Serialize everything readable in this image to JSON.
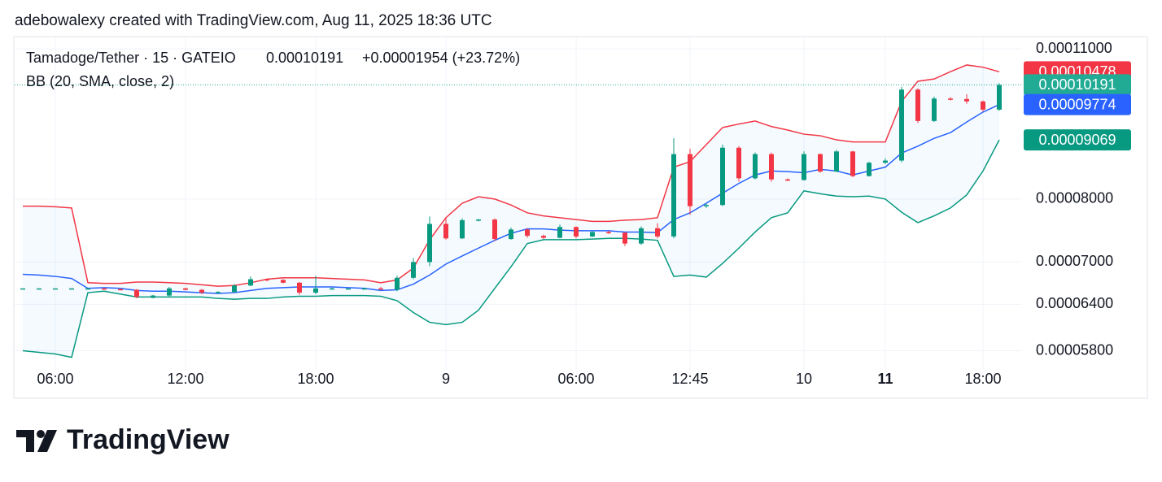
{
  "header": {
    "attribution": "adebowalexy created with TradingView.com, Aug 11, 2025 18:36 UTC"
  },
  "chart_data": {
    "type": "candlestick",
    "symbol": "Tamadoge/Tether · 15 · GATEIO",
    "price": "0.00010191",
    "change": "+0.00001954 (+23.72%)",
    "indicator": "BB (20, SMA, close, 2)",
    "categories": [
      null,
      null,
      "06:00",
      null,
      null,
      null,
      null,
      null,
      null,
      null,
      "12:00",
      null,
      null,
      null,
      null,
      null,
      null,
      null,
      "18:00",
      null,
      null,
      null,
      null,
      null,
      null,
      null,
      "9",
      null,
      null,
      null,
      null,
      null,
      null,
      null,
      "06:00",
      null,
      null,
      null,
      null,
      null,
      null,
      "12:45",
      null,
      null,
      null,
      null,
      null,
      null,
      "10",
      null,
      null,
      null,
      null,
      "11",
      null,
      null,
      null,
      null,
      null,
      "18:00",
      null
    ],
    "bold_categories": [
      53
    ],
    "open": [
      6.62e-05,
      6.62e-05,
      6.62e-05,
      6.62e-05,
      6.62e-05,
      6.62e-05,
      6.61e-05,
      6.6e-05,
      6.49e-05,
      6.52e-05,
      6.62e-05,
      6.6e-05,
      6.56e-05,
      6.57e-05,
      6.66e-05,
      6.75e-05,
      6.74e-05,
      6.7e-05,
      6.56e-05,
      6.62e-05,
      6.62e-05,
      6.62e-05,
      6.62e-05,
      6.6e-05,
      6.77e-05,
      7e-05,
      7.59e-05,
      7.36e-05,
      7.65e-05,
      7.66e-05,
      7.35e-05,
      7.5e-05,
      7.4e-05,
      7.37e-05,
      7.54e-05,
      7.39e-05,
      7.46e-05,
      7.45e-05,
      7.28e-05,
      7.52e-05,
      7.39e-05,
      8.8e-05,
      7.88e-05,
      7.9e-05,
      8.92e-05,
      8.36e-05,
      8.8e-05,
      8.34e-05,
      8.33e-05,
      8.8e-05,
      8.48e-05,
      8.85e-05,
      8.4e-05,
      8.64e-05,
      8.68e-05,
      0.0001009,
      9.44e-05,
      9.9e-05,
      9.89e-05,
      9.84e-05,
      9.67e-05
    ],
    "high": [
      6.62e-05,
      6.62e-05,
      6.62e-05,
      6.62e-05,
      6.63e-05,
      6.63e-05,
      6.62e-05,
      6.61e-05,
      6.53e-05,
      6.64e-05,
      6.63e-05,
      6.61e-05,
      6.58e-05,
      6.68e-05,
      6.79e-05,
      6.76e-05,
      6.75e-05,
      6.71e-05,
      6.8e-05,
      6.63e-05,
      6.62e-05,
      6.63e-05,
      6.64e-05,
      6.8e-05,
      7.06e-05,
      7.71e-05,
      7.68e-05,
      7.68e-05,
      7.67e-05,
      7.68e-05,
      7.53e-05,
      7.52e-05,
      7.42e-05,
      7.58e-05,
      7.55e-05,
      7.48e-05,
      7.48e-05,
      7.46e-05,
      7.55e-05,
      7.6e-05,
      9.1e-05,
      8.9e-05,
      7.93e-05,
      8.98e-05,
      8.95e-05,
      8.83e-05,
      8.83e-05,
      8.36e-05,
      8.85e-05,
      8.81e-05,
      8.88e-05,
      8.86e-05,
      8.66e-05,
      8.72e-05,
      0.0001015,
      0.0001012,
      9.94e-05,
      9.93e-05,
      9.99e-05,
      9.86e-05,
      0.0001023
    ],
    "low": [
      6.62e-05,
      6.62e-05,
      6.62e-05,
      6.62e-05,
      6.61e-05,
      6.6e-05,
      6.59e-05,
      6.48e-05,
      6.48e-05,
      6.51e-05,
      6.59e-05,
      6.54e-05,
      6.55e-05,
      6.56e-05,
      6.65e-05,
      6.72e-05,
      6.69e-05,
      6.53e-05,
      6.54e-05,
      6.61e-05,
      6.62e-05,
      6.61e-05,
      6.6e-05,
      6.58e-05,
      6.75e-05,
      6.94e-05,
      7.34e-05,
      7.35e-05,
      7.63e-05,
      7.32e-05,
      7.34e-05,
      7.37e-05,
      7.35e-05,
      7.36e-05,
      7.36e-05,
      7.38e-05,
      7.43e-05,
      7.24e-05,
      7.26e-05,
      7.36e-05,
      7.36e-05,
      7.74e-05,
      7.85e-05,
      7.88e-05,
      8.3e-05,
      8.34e-05,
      8.3e-05,
      8.31e-05,
      8.32e-05,
      8.46e-05,
      8.47e-05,
      8.38e-05,
      8.39e-05,
      8.62e-05,
      8.65e-05,
      9.4e-05,
      9.42e-05,
      9.86e-05,
      9.79e-05,
      9.63e-05,
      9.65e-05
    ],
    "close": [
      6.62e-05,
      6.62e-05,
      6.62e-05,
      6.62e-05,
      6.62e-05,
      6.61e-05,
      6.6e-05,
      6.5e-05,
      6.52e-05,
      6.62e-05,
      6.6e-05,
      6.56e-05,
      6.57e-05,
      6.66e-05,
      6.75e-05,
      6.74e-05,
      6.7e-05,
      6.56e-05,
      6.62e-05,
      6.62e-05,
      6.62e-05,
      6.62e-05,
      6.61e-05,
      6.77e-05,
      7e-05,
      7.59e-05,
      7.36e-05,
      7.65e-05,
      7.66e-05,
      7.35e-05,
      7.5e-05,
      7.4e-05,
      7.37e-05,
      7.54e-05,
      7.39e-05,
      7.46e-05,
      7.45e-05,
      7.28e-05,
      7.52e-05,
      7.39e-05,
      8.8e-05,
      7.88e-05,
      7.9e-05,
      8.92e-05,
      8.36e-05,
      8.8e-05,
      8.34e-05,
      8.33e-05,
      8.8e-05,
      8.48e-05,
      8.85e-05,
      8.4e-05,
      8.64e-05,
      8.68e-05,
      0.0001009,
      9.44e-05,
      9.9e-05,
      9.89e-05,
      9.84e-05,
      9.67e-05,
      0.00010191
    ],
    "up_color": "#089981",
    "down_color": "#f23645",
    "close_label": "0.00010191",
    "close_color": "#22ab94",
    "band_fill": "rgba(33,150,243,0.05)",
    "series": [
      {
        "color": "#f23645",
        "last_label": "0.00010478",
        "values": [
          7.88e-05,
          7.88e-05,
          7.87e-05,
          7.85e-05,
          6.7e-05,
          6.69e-05,
          6.69e-05,
          6.71e-05,
          6.71e-05,
          6.7e-05,
          6.69e-05,
          6.67e-05,
          6.65e-05,
          6.66e-05,
          6.7e-05,
          6.75e-05,
          6.77e-05,
          6.77e-05,
          6.77e-05,
          6.76e-05,
          6.75e-05,
          6.74e-05,
          6.7e-05,
          6.74e-05,
          6.91e-05,
          7.34e-05,
          7.69e-05,
          7.93e-05,
          8.04e-05,
          8e-05,
          7.9e-05,
          7.77e-05,
          7.72e-05,
          7.69e-05,
          7.66e-05,
          7.63e-05,
          7.63e-05,
          7.65e-05,
          7.66e-05,
          7.69e-05,
          8.56e-05,
          8.66e-05,
          8.98e-05,
          9.31e-05,
          9.38e-05,
          9.44e-05,
          9.33e-05,
          9.26e-05,
          9.18e-05,
          9.15e-05,
          9.07e-05,
          9.03e-05,
          9.03e-05,
          9.03e-05,
          9.84e-05,
          0.0001027,
          0.0001032,
          0.0001048,
          0.0001063,
          0.0001058,
          0.00010478
        ]
      },
      {
        "color": "#2962ff",
        "last_label": "0.00009774",
        "values": [
          6.82e-05,
          6.81e-05,
          6.79e-05,
          6.76e-05,
          6.62e-05,
          6.63e-05,
          6.62e-05,
          6.59e-05,
          6.58e-05,
          6.58e-05,
          6.57e-05,
          6.56e-05,
          6.55e-05,
          6.56e-05,
          6.59e-05,
          6.62e-05,
          6.63e-05,
          6.64e-05,
          6.64e-05,
          6.64e-05,
          6.63e-05,
          6.62e-05,
          6.59e-05,
          6.6e-05,
          6.68e-05,
          6.81e-05,
          6.97e-05,
          7.09e-05,
          7.21e-05,
          7.33e-05,
          7.44e-05,
          7.51e-05,
          7.51e-05,
          7.49e-05,
          7.48e-05,
          7.48e-05,
          7.48e-05,
          7.46e-05,
          7.46e-05,
          7.45e-05,
          7.66e-05,
          7.77e-05,
          7.93e-05,
          8.1e-05,
          8.27e-05,
          8.42e-05,
          8.49e-05,
          8.48e-05,
          8.46e-05,
          8.52e-05,
          8.49e-05,
          8.42e-05,
          8.49e-05,
          8.56e-05,
          8.82e-05,
          8.95e-05,
          9.1e-05,
          9.21e-05,
          9.42e-05,
          9.62e-05,
          9.774e-05
        ]
      },
      {
        "color": "#089981",
        "last_label": "0.00009069",
        "values": [
          5.8e-05,
          5.78e-05,
          5.76e-05,
          5.72e-05,
          6.56e-05,
          6.58e-05,
          6.54e-05,
          6.5e-05,
          6.5e-05,
          6.5e-05,
          6.5e-05,
          6.5e-05,
          6.48e-05,
          6.47e-05,
          6.48e-05,
          6.48e-05,
          6.5e-05,
          6.51e-05,
          6.51e-05,
          6.52e-05,
          6.52e-05,
          6.52e-05,
          6.51e-05,
          6.45e-05,
          6.29e-05,
          6.16e-05,
          6.13e-05,
          6.16e-05,
          6.32e-05,
          6.62e-05,
          6.93e-05,
          7.28e-05,
          7.34e-05,
          7.34e-05,
          7.34e-05,
          7.35e-05,
          7.36e-05,
          7.36e-05,
          7.35e-05,
          7.33e-05,
          6.79e-05,
          6.81e-05,
          6.78e-05,
          6.98e-05,
          7.21e-05,
          7.46e-05,
          7.69e-05,
          7.77e-05,
          8.14e-05,
          8.09e-05,
          8.05e-05,
          8.04e-05,
          8.05e-05,
          8e-05,
          7.78e-05,
          7.61e-05,
          7.72e-05,
          7.85e-05,
          8.07e-05,
          8.49e-05,
          9.069e-05
        ]
      }
    ],
    "log_scale": true,
    "grid": true,
    "ylim": [
      5.57e-05,
      0.0001129
    ],
    "yticks": [
      {
        "value": 0.00011,
        "label": "0.00011000"
      },
      {
        "value": 8e-05,
        "label": "0.00008000"
      },
      {
        "value": 7e-05,
        "label": "0.00007000"
      },
      {
        "value": 6.4e-05,
        "label": "0.00006400"
      },
      {
        "value": 5.8e-05,
        "label": "0.00005800"
      }
    ]
  },
  "footer": {
    "logo": "TradingView"
  }
}
